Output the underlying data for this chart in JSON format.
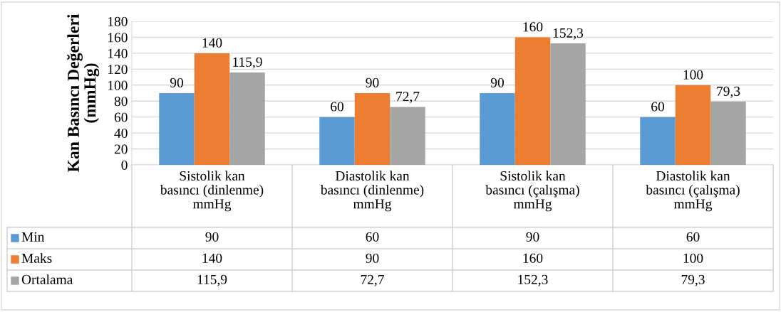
{
  "chart_data": {
    "type": "bar",
    "ylabel": "Kan Basıncı Değerleri\n(mmHg)",
    "categories": [
      "Sistolik kan\nbasıncı (dinlenme)\nmmHg",
      "Diastolik kan\nbasıncı (dinlenme)\nmmHg",
      "Sistolik kan\nbasıncı (çalışma)\nmmHg",
      "Diastolik kan\nbasıncı (çalışma)\nmmHg"
    ],
    "series": [
      {
        "name": "Min",
        "color": "#5b9bd5",
        "values": [
          90,
          60,
          90,
          60
        ],
        "value_labels": [
          "90",
          "60",
          "90",
          "60"
        ]
      },
      {
        "name": "Maks",
        "color": "#ed7d31",
        "values": [
          140,
          90,
          160,
          100
        ],
        "value_labels": [
          "140",
          "90",
          "160",
          "100"
        ]
      },
      {
        "name": "Ortalama",
        "color": "#a5a5a5",
        "values": [
          115.9,
          72.7,
          152.3,
          79.3
        ],
        "value_labels": [
          "115,9",
          "72,7",
          "152,3",
          "79,3"
        ]
      }
    ],
    "ylim": [
      0,
      180
    ],
    "yticks": [
      0,
      20,
      40,
      60,
      80,
      100,
      120,
      140,
      160,
      180
    ],
    "grid": "y",
    "legend": "bottom"
  }
}
